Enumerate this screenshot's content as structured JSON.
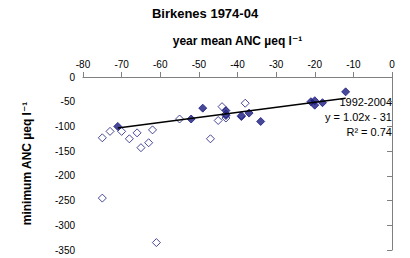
{
  "chart_data": {
    "type": "scatter",
    "title": "Birkenes 1974-04",
    "x_label": "year mean ANC µeq l⁻¹",
    "y_label": "minimum ANC µeq l⁻¹",
    "xlim": [
      -80,
      0
    ],
    "xticks": [
      -80,
      -70,
      -60,
      -50,
      -40,
      -30,
      -20,
      -10,
      0
    ],
    "ylim": [
      -350,
      0
    ],
    "yticks": [
      -350,
      -300,
      -250,
      -200,
      -150,
      -100,
      -50,
      0
    ],
    "grid": false,
    "annotations": [
      "1992-2004",
      "y = 1.02x - 31",
      "R² = 0.74"
    ],
    "series": [
      {
        "type": "scatter",
        "marker": "open_diamond",
        "color": "#1a1a80",
        "x": [
          -75,
          -75,
          -73,
          -70,
          -68,
          -66,
          -65,
          -63,
          -62,
          -61,
          -55,
          -47,
          -45,
          -44,
          -43,
          -43,
          -38,
          -39
        ],
        "values": [
          -123,
          -245,
          -110,
          -110,
          -125,
          -113,
          -143,
          -133,
          -107,
          -335,
          -85,
          -125,
          -88,
          -60,
          -83,
          -75,
          -53,
          -78
        ]
      },
      {
        "type": "scatter",
        "marker": "diamond",
        "color": "#1a1a80",
        "x": [
          -71,
          -52,
          -49,
          -43,
          -39,
          -37,
          -34,
          -21,
          -20,
          -20,
          -18,
          -12,
          -43
        ],
        "values": [
          -100,
          -85,
          -63,
          -68,
          -80,
          -73,
          -90,
          -50,
          -57,
          -48,
          -52,
          -30,
          -78
        ]
      },
      {
        "type": "line",
        "line_style": "solid",
        "color": "#000000",
        "x": [
          -71,
          -12
        ],
        "values": [
          -103.4,
          -43.2
        ]
      }
    ]
  }
}
